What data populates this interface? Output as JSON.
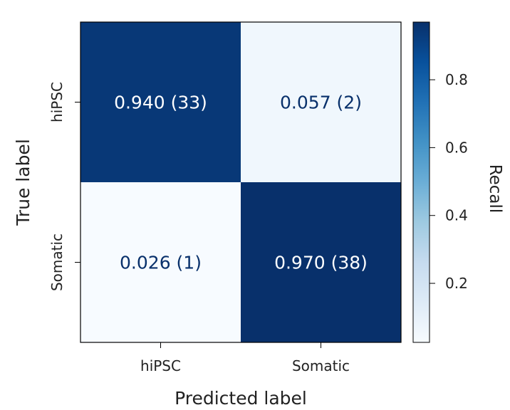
{
  "chart_data": {
    "type": "heatmap",
    "title": "",
    "xlabel": "Predicted label",
    "ylabel": "True label",
    "x_categories": [
      "hiPSC",
      "Somatic"
    ],
    "y_categories": [
      "hiPSC",
      "Somatic"
    ],
    "values": [
      [
        0.94,
        0.057
      ],
      [
        0.026,
        0.97
      ]
    ],
    "counts": [
      [
        33,
        2
      ],
      [
        1,
        38
      ]
    ],
    "cell_labels": [
      [
        "0.940 (33)",
        "0.057 (2)"
      ],
      [
        "0.026 (1)",
        "0.970 (38)"
      ]
    ],
    "colorbar": {
      "label": "Recall",
      "range": [
        0.026,
        0.97
      ],
      "ticks": [
        0.2,
        0.4,
        0.6,
        0.8
      ],
      "tick_labels": [
        "0.2",
        "0.4",
        "0.6",
        "0.8"
      ],
      "colormap": "Blues",
      "color_low": "#f7fbff",
      "color_high": "#08306b"
    },
    "text_color_dark_cell": "#ffffff",
    "text_color_light_cell": "#08306b",
    "grid": false
  }
}
